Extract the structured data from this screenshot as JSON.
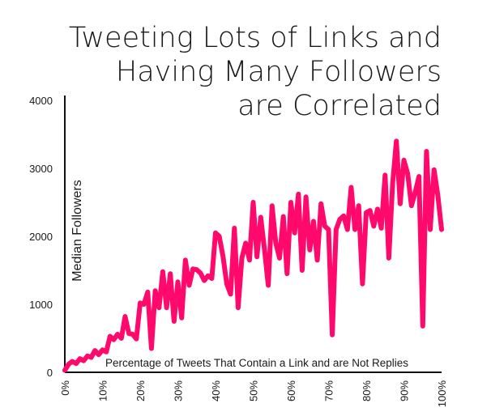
{
  "chart_data": {
    "type": "line",
    "title_lines": [
      "Tweeting Lots of Links and",
      "Having Many Followers",
      "are Correlated"
    ],
    "xlabel": "Percentage of Tweets That Contain a Link and are Not Replies",
    "ylabel": "Median Followers",
    "xlim": [
      0,
      100
    ],
    "ylim": [
      0,
      4000
    ],
    "x_ticks": [
      0,
      10,
      20,
      30,
      40,
      50,
      60,
      70,
      80,
      90,
      100
    ],
    "x_tick_labels": [
      "0%",
      "10%",
      "20%",
      "30%",
      "40%",
      "50%",
      "60%",
      "70%",
      "80%",
      "90%",
      "100%"
    ],
    "y_ticks": [
      0,
      1000,
      2000,
      3000,
      4000
    ],
    "y_tick_labels": [
      "0",
      "1000",
      "2000",
      "3000",
      "4000"
    ],
    "grid": false,
    "series": [
      {
        "color": "#ff0a6c",
        "x": [
          0,
          1,
          2,
          3,
          4,
          5,
          6,
          7,
          8,
          9,
          10,
          11,
          12,
          13,
          14,
          15,
          16,
          17,
          18,
          19,
          20,
          21,
          22,
          23,
          24,
          25,
          26,
          27,
          28,
          29,
          30,
          31,
          32,
          33,
          34,
          35,
          36,
          37,
          38,
          39,
          40,
          41,
          42,
          43,
          44,
          45,
          46,
          47,
          48,
          49,
          50,
          51,
          52,
          53,
          54,
          55,
          56,
          57,
          58,
          59,
          60,
          61,
          62,
          63,
          64,
          65,
          66,
          67,
          68,
          69,
          70,
          71,
          72,
          73,
          74,
          75,
          76,
          77,
          78,
          79,
          80,
          81,
          82,
          83,
          84,
          85,
          86,
          87,
          88,
          89,
          90,
          91,
          92,
          93,
          94,
          95,
          96,
          97,
          98,
          99,
          100
        ],
        "y": [
          30,
          120,
          160,
          130,
          200,
          170,
          240,
          220,
          320,
          260,
          330,
          300,
          530,
          480,
          560,
          500,
          820,
          570,
          560,
          490,
          1020,
          1000,
          1180,
          350,
          1200,
          950,
          1480,
          950,
          1450,
          750,
          1330,
          800,
          1650,
          1280,
          1520,
          1510,
          1460,
          1350,
          1420,
          1380,
          2050,
          2000,
          1700,
          1300,
          1150,
          2120,
          950,
          1680,
          1900,
          1650,
          2500,
          1700,
          2280,
          1800,
          1280,
          2450,
          1900,
          1680,
          2290,
          1450,
          2500,
          2050,
          2620,
          1500,
          2580,
          1800,
          2220,
          1650,
          2480,
          2150,
          2100,
          550,
          2100,
          2250,
          2300,
          2100,
          2720,
          2100,
          2450,
          1300,
          2350,
          2380,
          2150,
          2400,
          2120,
          2900,
          1680,
          2780,
          3400,
          2480,
          3120,
          2920,
          2450,
          2650,
          2880,
          680,
          3250,
          2100,
          2980,
          2600,
          2100
        ]
      }
    ]
  }
}
